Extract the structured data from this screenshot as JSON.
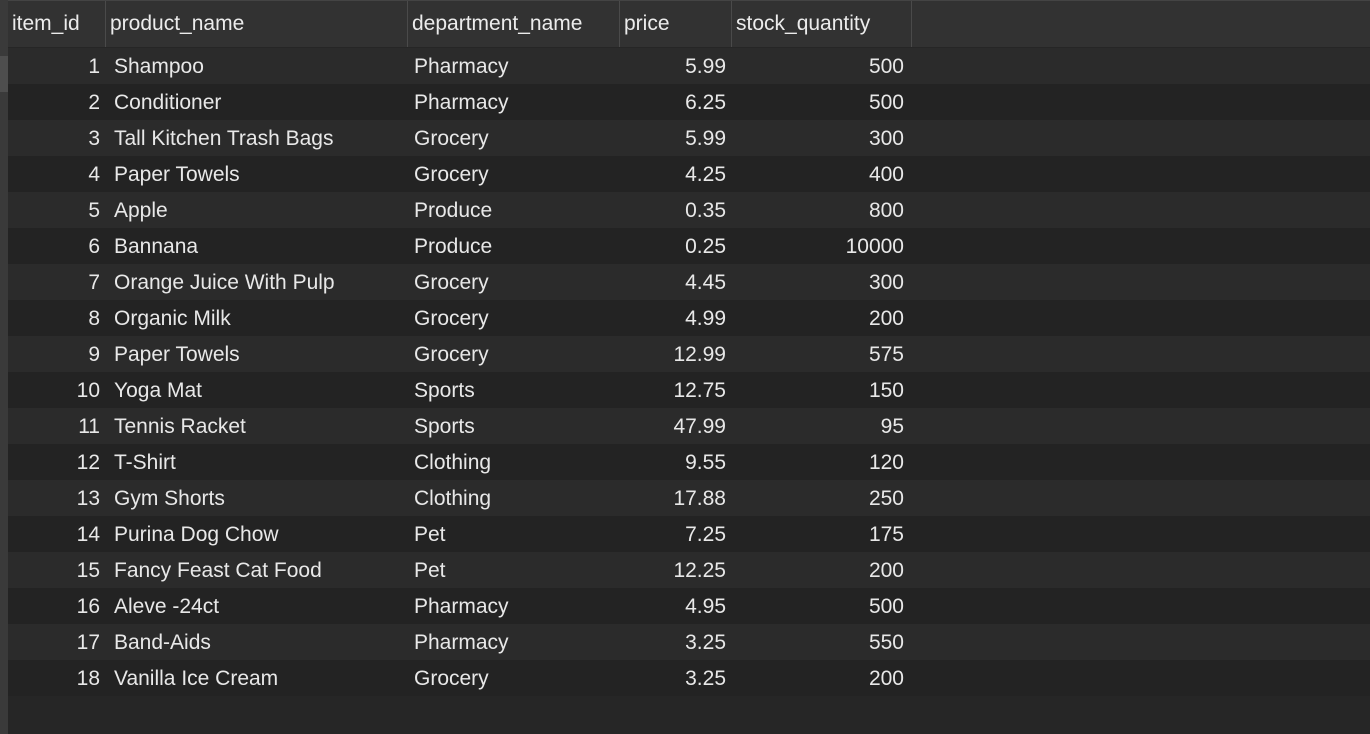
{
  "table": {
    "columns": [
      "item_id",
      "product_name",
      "department_name",
      "price",
      "stock_quantity"
    ],
    "rows": [
      [
        "1",
        "Shampoo",
        "Pharmacy",
        "5.99",
        "500"
      ],
      [
        "2",
        "Conditioner",
        "Pharmacy",
        "6.25",
        "500"
      ],
      [
        "3",
        "Tall Kitchen Trash Bags",
        "Grocery",
        "5.99",
        "300"
      ],
      [
        "4",
        "Paper Towels",
        "Grocery",
        "4.25",
        "400"
      ],
      [
        "5",
        "Apple",
        "Produce",
        "0.35",
        "800"
      ],
      [
        "6",
        "Bannana",
        "Produce",
        "0.25",
        "10000"
      ],
      [
        "7",
        "Orange Juice With Pulp",
        "Grocery",
        "4.45",
        "300"
      ],
      [
        "8",
        "Organic Milk",
        "Grocery",
        "4.99",
        "200"
      ],
      [
        "9",
        "Paper Towels",
        "Grocery",
        "12.99",
        "575"
      ],
      [
        "10",
        "Yoga Mat",
        "Sports",
        "12.75",
        "150"
      ],
      [
        "11",
        "Tennis Racket",
        "Sports",
        "47.99",
        "95"
      ],
      [
        "12",
        "T-Shirt",
        "Clothing",
        "9.55",
        "120"
      ],
      [
        "13",
        "Gym Shorts",
        "Clothing",
        "17.88",
        "250"
      ],
      [
        "14",
        "Purina Dog Chow",
        "Pet",
        "7.25",
        "175"
      ],
      [
        "15",
        "Fancy Feast Cat Food",
        "Pet",
        "12.25",
        "200"
      ],
      [
        "16",
        "Aleve -24ct",
        "Pharmacy",
        "4.95",
        "500"
      ],
      [
        "17",
        "Band-Aids",
        "Pharmacy",
        "3.25",
        "550"
      ],
      [
        "18",
        "Vanilla Ice Cream",
        "Grocery",
        "3.25",
        "200"
      ]
    ]
  }
}
